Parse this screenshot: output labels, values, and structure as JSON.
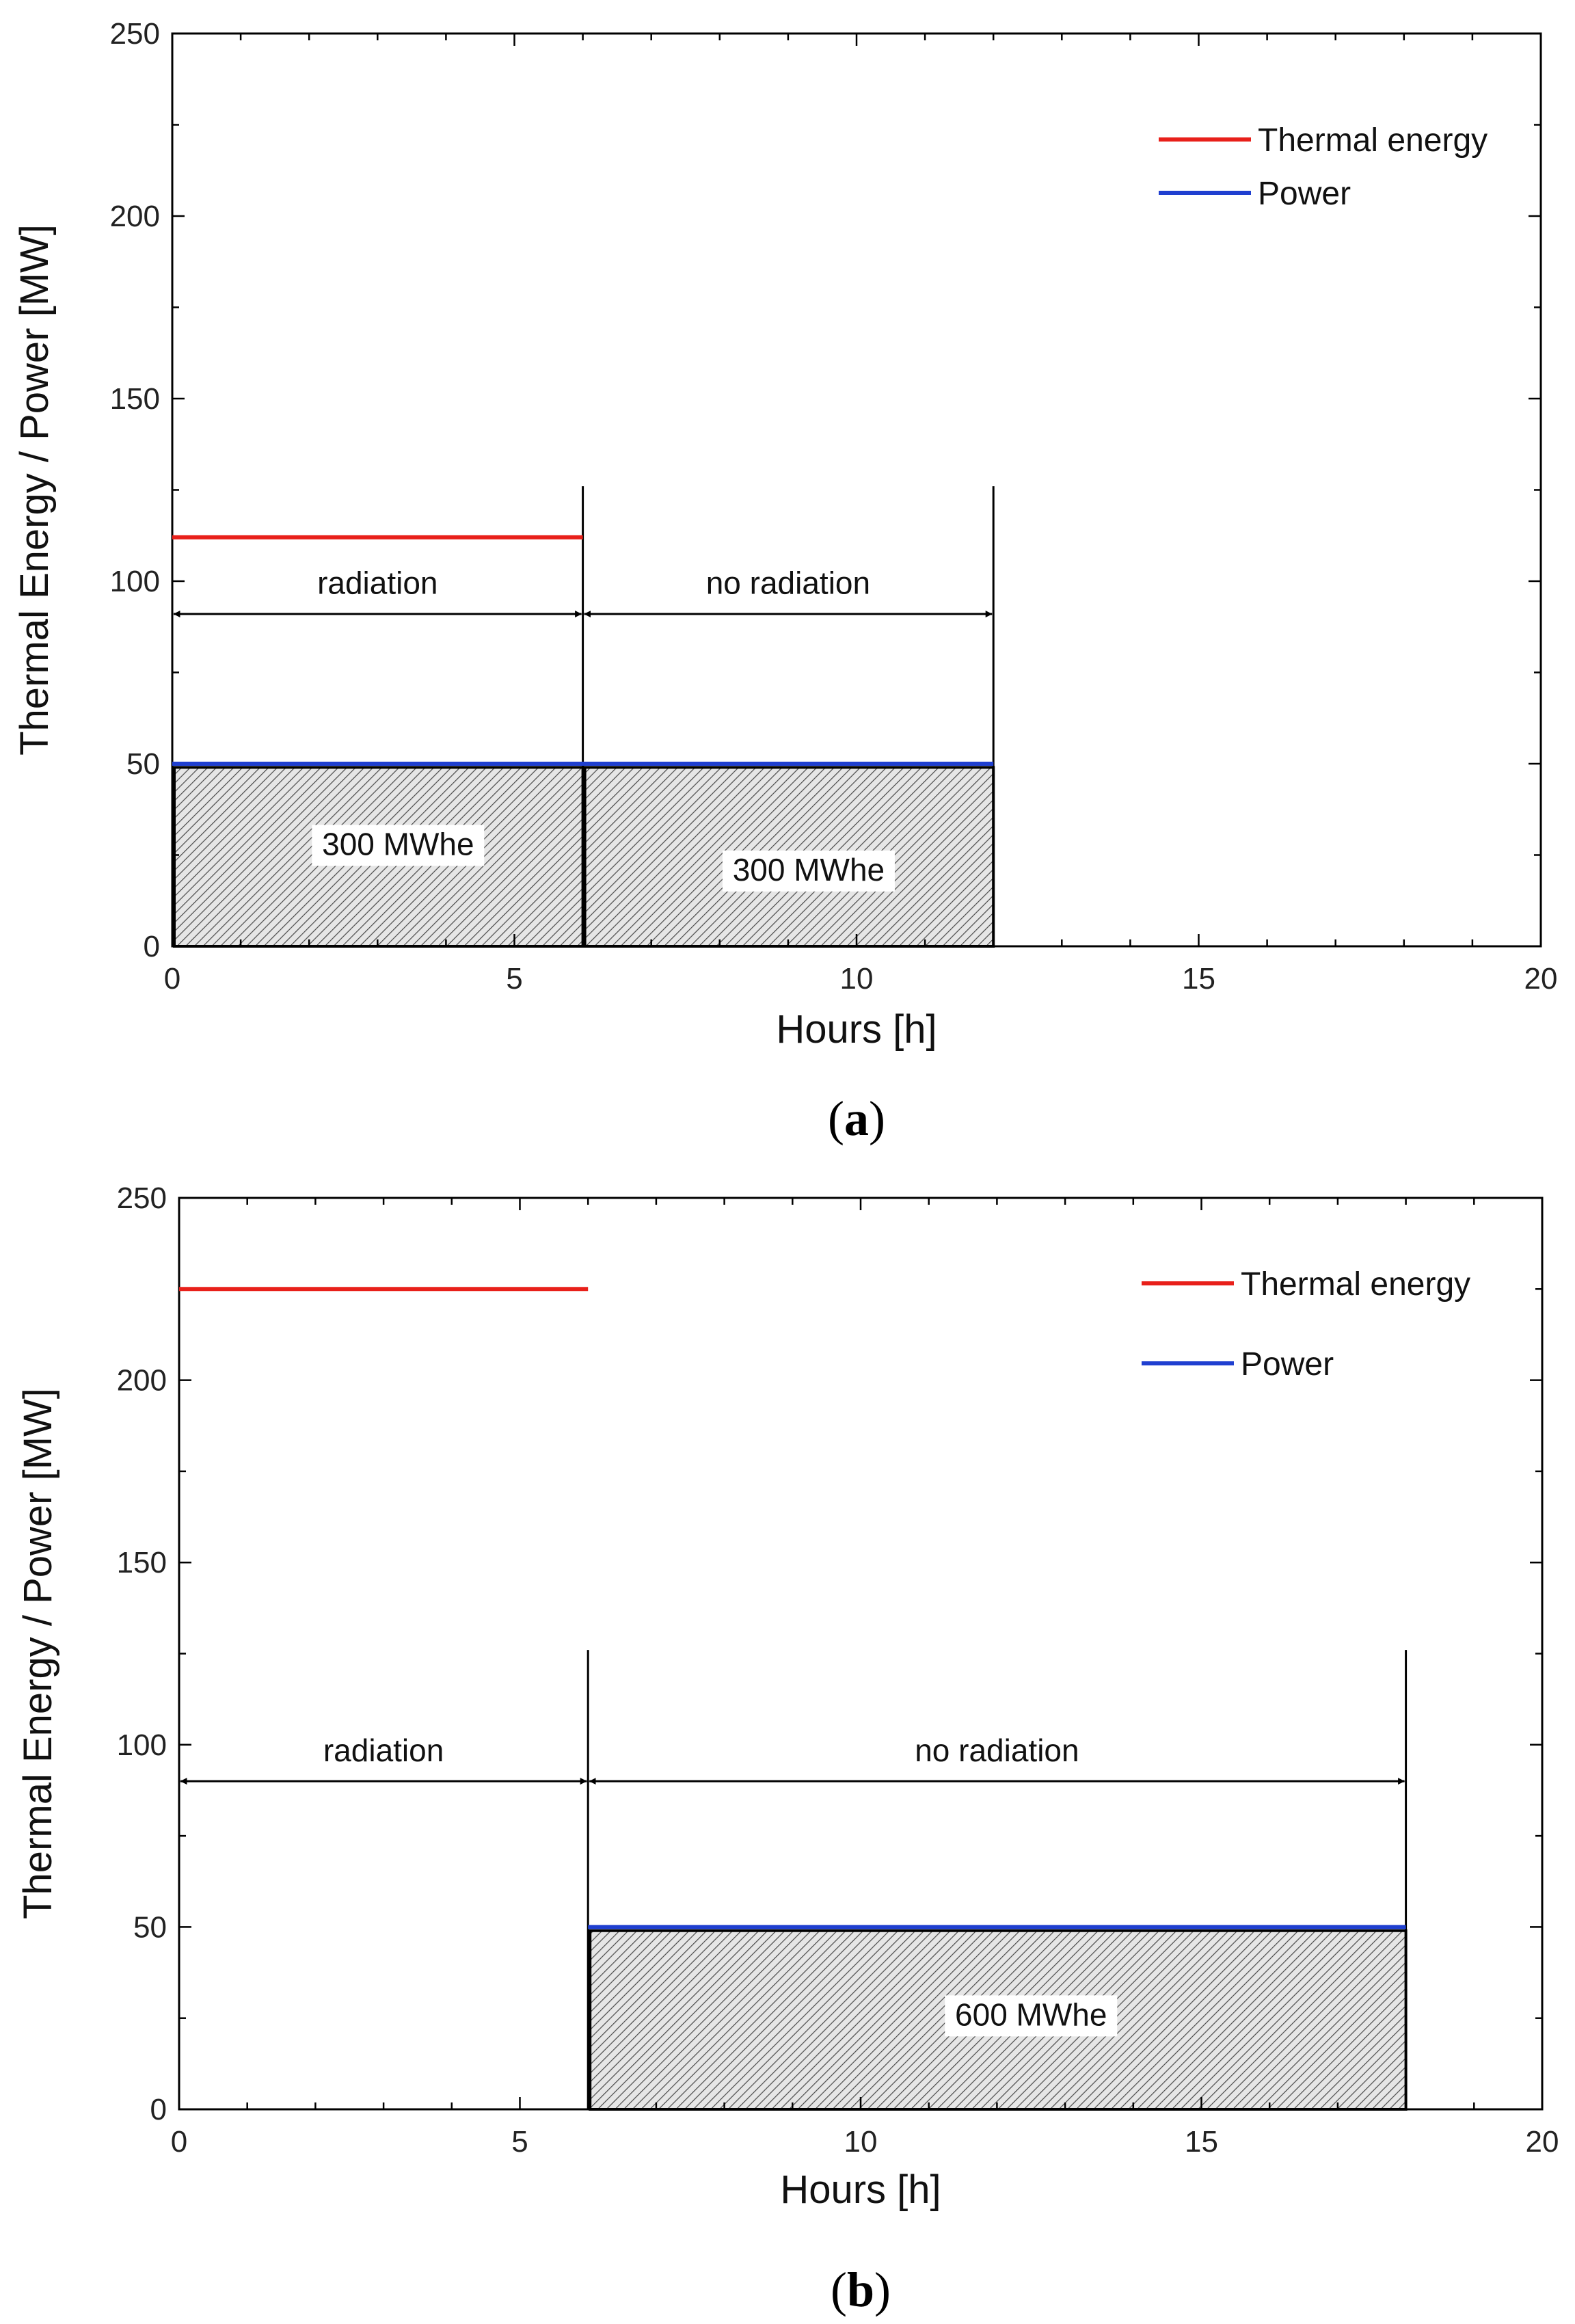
{
  "chart_data": [
    {
      "type": "line",
      "panel": "a",
      "caption_letter": "a",
      "xlabel": "Hours [h]",
      "ylabel": "Thermal Energy / Power [MW]",
      "xlim": [
        0,
        20
      ],
      "ylim": [
        0,
        250
      ],
      "xticks": [
        0,
        5,
        10,
        15,
        20
      ],
      "yticks": [
        0,
        50,
        100,
        150,
        200,
        250
      ],
      "x_minor_step": 1,
      "y_minor_step": 25,
      "series": [
        {
          "name": "Thermal energy",
          "color": "#e8201a",
          "x": [
            0,
            6
          ],
          "values": [
            112,
            112
          ]
        },
        {
          "name": "Power",
          "color": "#1f3fd0",
          "x": [
            0,
            12
          ],
          "values": [
            50,
            50
          ]
        }
      ],
      "legend": "top-right",
      "hatched_areas": [
        {
          "x": [
            0,
            6
          ],
          "y": [
            0,
            49
          ],
          "label": "300 MWhe",
          "label_pos": [
            3.3,
            25
          ]
        },
        {
          "x": [
            6,
            12
          ],
          "y": [
            0,
            49
          ],
          "label": "300 MWhe",
          "label_pos": [
            9.3,
            18
          ]
        }
      ],
      "vertical_lines": [
        {
          "x": 6,
          "y_top": 126
        },
        {
          "x": 12,
          "y_top": 126
        }
      ],
      "spans": [
        {
          "label": "radiation",
          "x": [
            0,
            6
          ],
          "y": 91,
          "label_y": 96.5
        },
        {
          "label": "no radiation",
          "x": [
            6,
            12
          ],
          "y": 91,
          "label_y": 96.5
        }
      ]
    },
    {
      "type": "line",
      "panel": "b",
      "caption_letter": "b",
      "xlabel": "Hours [h]",
      "ylabel": "Thermal Energy / Power [MW]",
      "xlim": [
        0,
        20
      ],
      "ylim": [
        0,
        250
      ],
      "xticks": [
        0,
        5,
        10,
        15,
        20
      ],
      "yticks": [
        0,
        50,
        100,
        150,
        200,
        250
      ],
      "x_minor_step": 1,
      "y_minor_step": 25,
      "series": [
        {
          "name": "Thermal energy",
          "color": "#e8201a",
          "x": [
            0,
            6
          ],
          "values": [
            225,
            225
          ]
        },
        {
          "name": "Power",
          "color": "#1f3fd0",
          "x": [
            6,
            18
          ],
          "values": [
            50,
            50
          ]
        }
      ],
      "legend": "top-right",
      "hatched_areas": [
        {
          "x": [
            6,
            18
          ],
          "y": [
            0,
            49
          ],
          "label": "600 MWhe",
          "label_pos": [
            12.5,
            23
          ]
        }
      ],
      "vertical_lines": [
        {
          "x": 6,
          "y_top": 126
        },
        {
          "x": 18,
          "y_top": 126
        }
      ],
      "spans": [
        {
          "label": "radiation",
          "x": [
            0,
            6
          ],
          "y": 90,
          "label_y": 95.5
        },
        {
          "label": "no radiation",
          "x": [
            6,
            18
          ],
          "y": 90,
          "label_y": 95.5
        }
      ]
    }
  ]
}
